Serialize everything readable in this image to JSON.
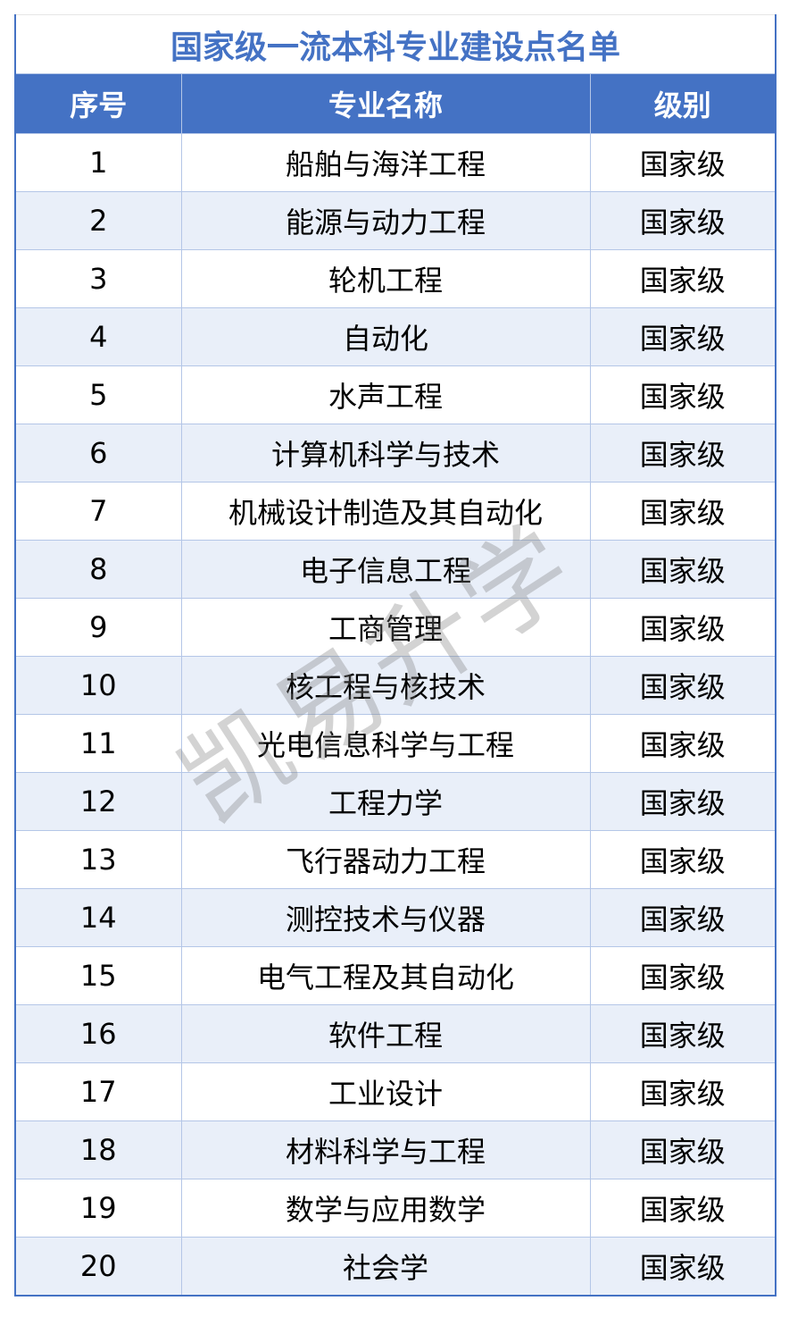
{
  "title": "国家级一流本科专业建设点名单",
  "headers": [
    "序号",
    "专业名称",
    "级别"
  ],
  "rows": [
    {
      "no": "1",
      "name": "船舶与海洋工程",
      "level": "国家级"
    },
    {
      "no": "2",
      "name": "能源与动力工程",
      "level": "国家级"
    },
    {
      "no": "3",
      "name": "轮机工程",
      "level": "国家级"
    },
    {
      "no": "4",
      "name": "自动化",
      "level": "国家级"
    },
    {
      "no": "5",
      "name": "水声工程",
      "level": "国家级"
    },
    {
      "no": "6",
      "name": "计算机科学与技术",
      "level": "国家级"
    },
    {
      "no": "7",
      "name": "机械设计制造及其自动化",
      "level": "国家级"
    },
    {
      "no": "8",
      "name": "电子信息工程",
      "level": "国家级"
    },
    {
      "no": "9",
      "name": "工商管理",
      "level": "国家级"
    },
    {
      "no": "10",
      "name": "核工程与核技术",
      "level": "国家级"
    },
    {
      "no": "11",
      "name": "光电信息科学与工程",
      "level": "国家级"
    },
    {
      "no": "12",
      "name": "工程力学",
      "level": "国家级"
    },
    {
      "no": "13",
      "name": "飞行器动力工程",
      "level": "国家级"
    },
    {
      "no": "14",
      "name": "测控技术与仪器",
      "level": "国家级"
    },
    {
      "no": "15",
      "name": "电气工程及其自动化",
      "level": "国家级"
    },
    {
      "no": "16",
      "name": "软件工程",
      "level": "国家级"
    },
    {
      "no": "17",
      "name": "工业设计",
      "level": "国家级"
    },
    {
      "no": "18",
      "name": "材料科学与工程",
      "level": "国家级"
    },
    {
      "no": "19",
      "name": "数学与应用数学",
      "level": "国家级"
    },
    {
      "no": "20",
      "name": "社会学",
      "level": "国家级"
    }
  ],
  "watermark": "凯易升学",
  "colors": {
    "header": "#4472c4",
    "stripe": "#e9eff9",
    "border": "#b4c6e7"
  }
}
